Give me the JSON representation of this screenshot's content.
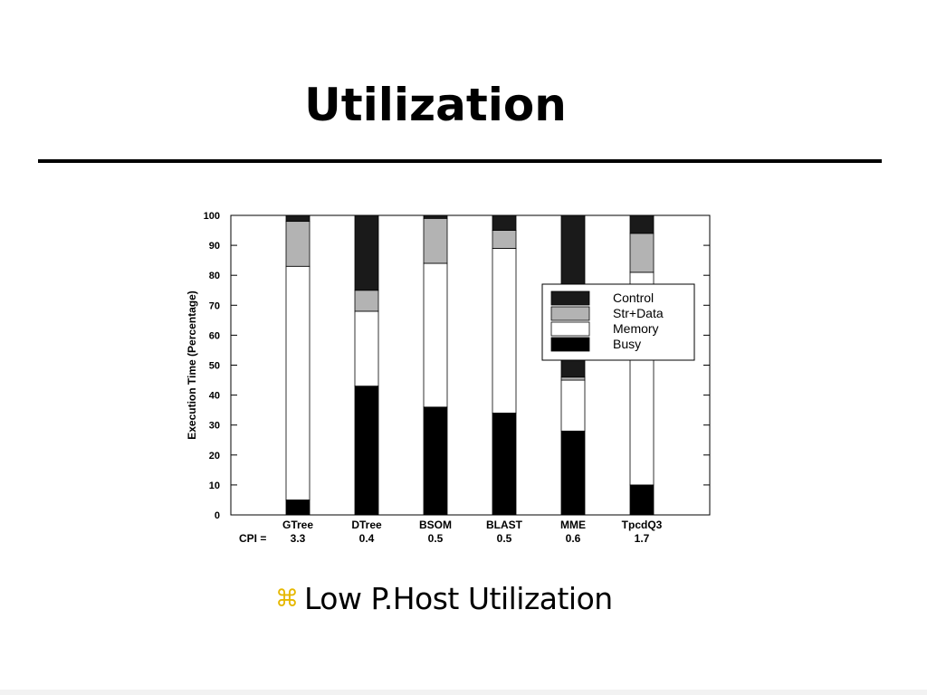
{
  "slide": {
    "title": "Utilization",
    "bullet_icon": "command-key-icon",
    "bullet_text": "Low P.Host Utilization"
  },
  "chart_data": {
    "type": "bar",
    "stacked": true,
    "title": "",
    "xlabel": "",
    "ylabel": "Execution Time (Percentage)",
    "ylim": [
      0,
      100
    ],
    "yticks": [
      0,
      10,
      20,
      30,
      40,
      50,
      60,
      70,
      80,
      90,
      100
    ],
    "grid": false,
    "legend_position": "right",
    "categories": [
      "GTree",
      "DTree",
      "BSOM",
      "BLAST",
      "MME",
      "TpcdQ3"
    ],
    "cpi_label": "CPI =",
    "cpi_values": [
      "3.3",
      "0.4",
      "0.5",
      "0.5",
      "0.6",
      "1.7"
    ],
    "series": [
      {
        "name": "Busy",
        "color": "#000000",
        "values": [
          5,
          43,
          36,
          34,
          28,
          10
        ]
      },
      {
        "name": "Memory",
        "color": "#ffffff",
        "values": [
          78,
          25,
          48,
          55,
          17,
          71
        ]
      },
      {
        "name": "Str+Data",
        "color": "#b3b3b3",
        "values": [
          15,
          7,
          15,
          6,
          1,
          13
        ]
      },
      {
        "name": "Control",
        "color": "#1a1a1a",
        "values": [
          2,
          25,
          1,
          5,
          54,
          6
        ]
      }
    ],
    "legend_order": [
      "Control",
      "Str+Data",
      "Memory",
      "Busy"
    ]
  }
}
